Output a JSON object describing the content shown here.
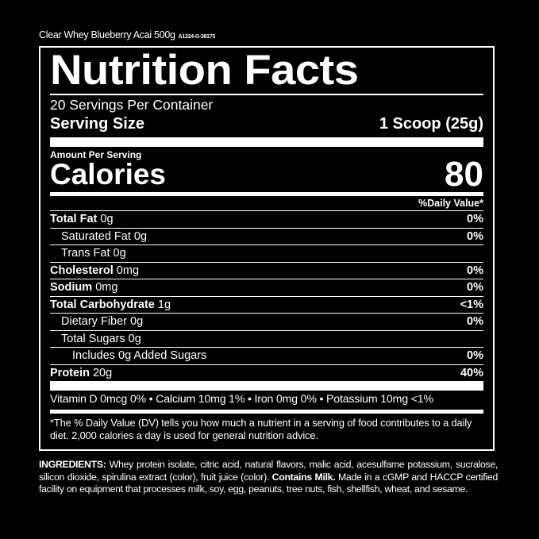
{
  "product": {
    "name": "Clear Whey Blueberry Acai 500g",
    "code": "A1224-G-38173"
  },
  "label": {
    "title": "Nutrition Facts",
    "servings_per_container": "20 Servings Per Container",
    "serving_size_label": "Serving Size",
    "serving_size_value": "1 Scoop (25g)",
    "amount_per_serving": "Amount Per Serving",
    "calories_label": "Calories",
    "calories_value": "80",
    "daily_value_header": "%Daily Value*",
    "nutrients": [
      {
        "name": "Total Fat",
        "amount": "0g",
        "dv": "0%"
      },
      {
        "name": "Saturated Fat",
        "amount": "0g",
        "dv": "0%"
      },
      {
        "name": "Trans Fat",
        "amount": "0g",
        "dv": ""
      },
      {
        "name": "Cholesterol",
        "amount": "0mg",
        "dv": "0%"
      },
      {
        "name": "Sodium",
        "amount": "0mg",
        "dv": "0%"
      },
      {
        "name": "Total Carbohydrate",
        "amount": "1g",
        "dv": "<1%"
      },
      {
        "name": "Dietary Fiber",
        "amount": "0g",
        "dv": "0%"
      },
      {
        "name": "Total Sugars",
        "amount": "0g",
        "dv": ""
      },
      {
        "name": "Includes 0g Added Sugars",
        "amount": "",
        "dv": "0%"
      },
      {
        "name": "Protein",
        "amount": "20g",
        "dv": "40%"
      }
    ],
    "vitamins": "Vitamin D 0mcg 0% • Calcium 10mg 1% • Iron 0mg 0% • Potassium 10mg <1%",
    "footnote": "*The % Daily Value (DV) tells you how much a nutrient in a serving of food contributes to a daily diet. 2,000 calories a day is used for general nutrition advice."
  },
  "ingredients": {
    "label": "INGREDIENTS:",
    "text": " Whey protein isolate, citric acid, natural flavors, malic acid, acesulfame potassium, sucralose, silicon dioxide, spirulina extract (color), fruit juice (color). ",
    "allergen": "Contains Milk.",
    "facility": " Made in a cGMP and HACCP certified facility on equipment that processes milk, soy, egg, peanuts, tree nuts, fish, shellfish, wheat, and sesame."
  }
}
